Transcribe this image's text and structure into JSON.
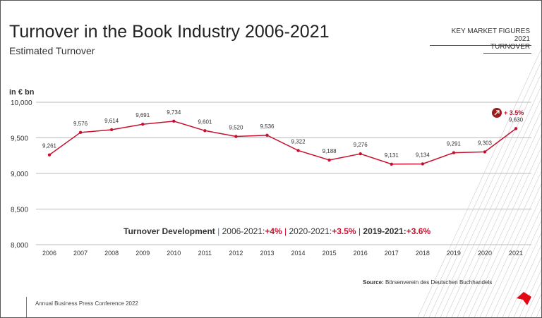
{
  "header": {
    "title": "Turnover in the Book Industry 2006-2021",
    "subtitle": "Estimated Turnover",
    "section": "KEY MARKET FIGURES 2021",
    "tab": "TURNOVER"
  },
  "footer": {
    "text": "Annual Business Press Conference  2022",
    "source_label": "Source:",
    "source": " Börsenverein  des Deutschen Buchhandels"
  },
  "colors": {
    "line": "#c8102e",
    "accent": "#e30613",
    "text": "#333333"
  },
  "chart_data": {
    "type": "line",
    "ylabel": "in € bn",
    "ylim": [
      8000,
      10000
    ],
    "yticks": [
      "10,000",
      "9,500",
      "9,000",
      "8,500",
      "8,000"
    ],
    "grid": "horizontal",
    "categories": [
      "2006",
      "2007",
      "2008",
      "2009",
      "2010",
      "2011",
      "2012",
      "2013",
      "2014",
      "2015",
      "2016",
      "2017",
      "2018",
      "2019",
      "2020",
      "2021"
    ],
    "values": [
      9261,
      9576,
      9614,
      9691,
      9734,
      9601,
      9520,
      9536,
      9322,
      9188,
      9276,
      9131,
      9134,
      9291,
      9303,
      9630
    ],
    "labels": [
      "9,261",
      "9,576",
      "9,614",
      "9,691",
      "9,734",
      "9,601",
      "9,520",
      "9,536",
      "9,322",
      "9,188",
      "9,276",
      "9,131",
      "9,134",
      "9,291",
      "9,303",
      "9,630"
    ],
    "annotation": {
      "icon": "arrow-up-right-icon",
      "text": "+ 3.5%"
    },
    "development": {
      "label": "Turnover Development",
      "p1": "2006-2021:",
      "v1": "+4%",
      "p2": "2020-2021:",
      "v2": "+3.5%",
      "p3": "2019-2021:",
      "v3": "+3.6%"
    }
  }
}
